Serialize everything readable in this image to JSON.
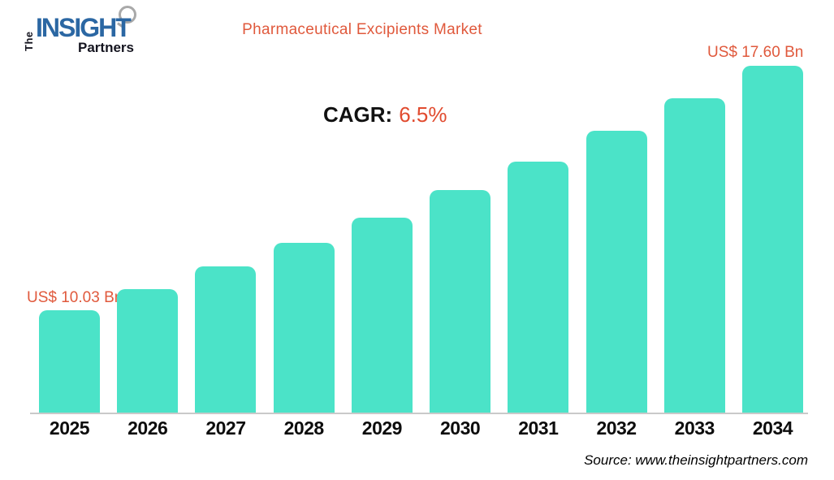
{
  "logo": {
    "the": "The",
    "insight": "INSIGHT",
    "partners": "Partners"
  },
  "header": {
    "title": "Pharmaceutical Excipients Market"
  },
  "annotation": {
    "cagr_label": "CAGR:",
    "cagr_value": "6.5%"
  },
  "callouts": {
    "first_bar": "US$ 10.03 Bn",
    "last_bar": "US$ 17.60 Bn"
  },
  "footer": {
    "source": "Source: www.theinsightpartners.com"
  },
  "colors": {
    "accent_orange": "#E0593C",
    "cagr_orange": "#E14B2F",
    "bar_teal": "#4BE3C8",
    "logo_blue": "#2B67A3",
    "logo_dark": "#14141F",
    "axis_gray": "#C9C9C9",
    "text_black": "#111111"
  },
  "chart_data": {
    "type": "bar",
    "title": "Pharmaceutical Excipients Market",
    "categories": [
      "2025",
      "2026",
      "2027",
      "2028",
      "2029",
      "2030",
      "2031",
      "2032",
      "2033",
      "2034"
    ],
    "values": [
      10.03,
      10.68,
      11.38,
      12.12,
      12.9,
      13.74,
      14.64,
      15.59,
      16.6,
      17.6
    ],
    "unit": "US$ Bn",
    "cagr_percent": 6.5,
    "first_bar_label": "US$ 10.03 Bn",
    "last_bar_label": "US$ 17.60 Bn",
    "xlabel": "",
    "ylabel": "",
    "value_axis_visible": false,
    "baseline_truncated": true,
    "grid": false,
    "legend_position": "none",
    "bar_color": "#4BE3C8"
  }
}
